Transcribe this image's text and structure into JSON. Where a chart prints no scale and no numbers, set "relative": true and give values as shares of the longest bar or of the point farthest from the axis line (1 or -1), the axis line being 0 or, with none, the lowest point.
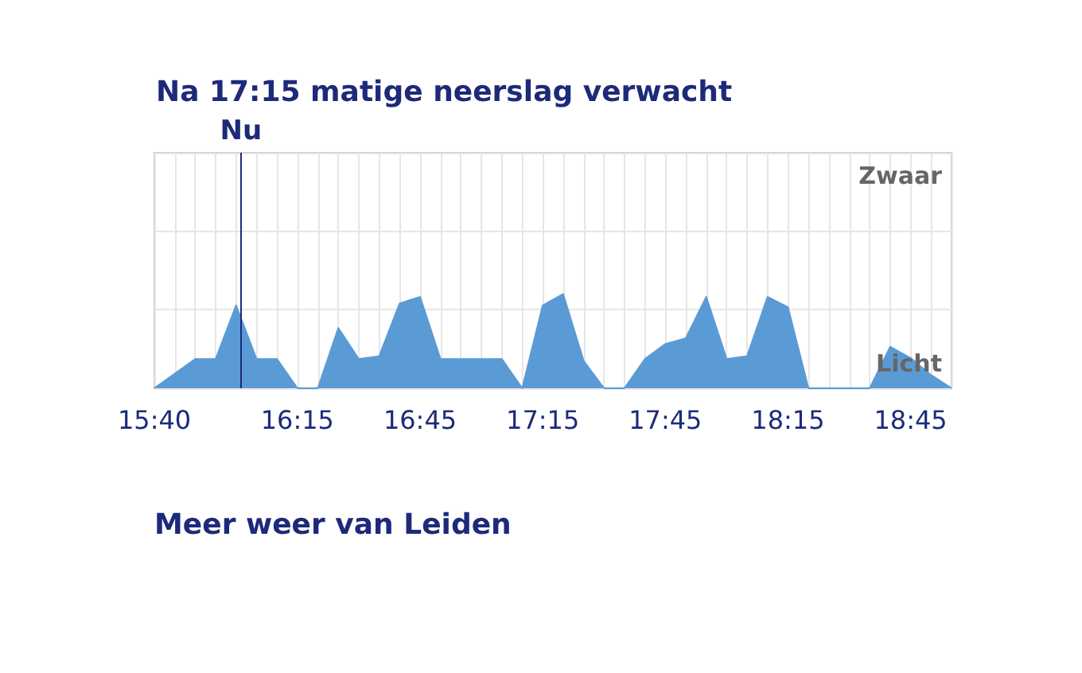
{
  "chart_data": {
    "type": "area",
    "title": "Na 17:15 matige neerslag verwacht",
    "relative": true,
    "grid": true,
    "x": [
      15.6667,
      15.8333,
      15.9167,
      16,
      16.0833,
      16.1667,
      16.25,
      16.3333,
      16.4167,
      16.5,
      16.5833,
      16.6667,
      16.75,
      16.8333,
      16.9167,
      17,
      17.0833,
      17.1667,
      17.25,
      17.3333,
      17.4167,
      17.5,
      17.5833,
      17.6667,
      17.75,
      17.8333,
      17.9167,
      18,
      18.0833,
      18.1667,
      18.25,
      18.3333,
      18.4167,
      18.5,
      18.5833,
      18.6667,
      18.75,
      18.8333,
      18.9167
    ],
    "xlim": [
      15.6667,
      18.9167
    ],
    "xticks": [
      {
        "value": 15.6667,
        "label": "15:40"
      },
      {
        "value": 16.25,
        "label": "16:15"
      },
      {
        "value": 16.75,
        "label": "16:45"
      },
      {
        "value": 17.25,
        "label": "17:15"
      },
      {
        "value": 17.75,
        "label": "17:45"
      },
      {
        "value": 18.25,
        "label": "18:15"
      },
      {
        "value": 18.75,
        "label": "18:45"
      }
    ],
    "tick_labels": "x",
    "series": [
      {
        "color": "#5b9bd5",
        "values": [
          0,
          0.31,
          0.31,
          0.88,
          0.31,
          0.31,
          0,
          0,
          0.64,
          0.31,
          0.34,
          0.9,
          0.97,
          0.31,
          0.31,
          0.31,
          0.31,
          0,
          0.88,
          1,
          0.29,
          0,
          0,
          0.31,
          0.47,
          0.53,
          0.97,
          0.31,
          0.34,
          0.97,
          0.86,
          0,
          0,
          0,
          0,
          0.44,
          0.32,
          0.14,
          0
        ]
      }
    ],
    "ref_lines": [
      {
        "axis": "x",
        "value": 16.02,
        "label": "Nu",
        "color": "#1d2a7a"
      }
    ],
    "annotations": [
      "Zwaar",
      "Licht",
      "Meer weer van Leiden"
    ]
  }
}
